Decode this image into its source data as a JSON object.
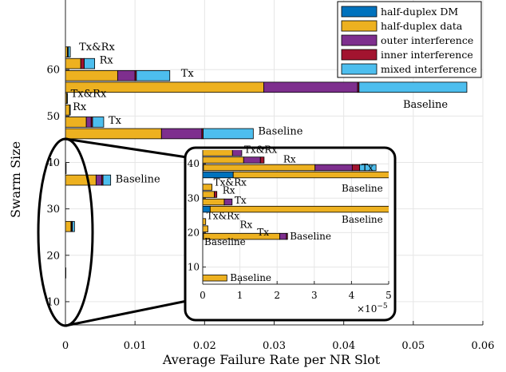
{
  "chart_data": {
    "type": "bar",
    "orientation": "horizontal",
    "stacked": true,
    "xlabel": "Average Failure Rate per NR Slot",
    "ylabel": "Swarm Size",
    "xlim": [
      0,
      0.06
    ],
    "ylim": [
      5,
      75
    ],
    "x_ticks": [
      "0",
      "0.01",
      "0.02",
      "0.03",
      "0.04",
      "0.05",
      "0.06"
    ],
    "y_ticks": [
      "10",
      "20",
      "30",
      "40",
      "50",
      "60"
    ],
    "grid": true,
    "legend_position": "top-right",
    "series": [
      {
        "name": "half-duplex DM",
        "color": "#0072BD"
      },
      {
        "name": "half-duplex data",
        "color": "#EDB120"
      },
      {
        "name": "outer interference",
        "color": "#7E2F8E"
      },
      {
        "name": "inner interference",
        "color": "#A2142F"
      },
      {
        "name": "mixed interference",
        "color": "#4DBEEE"
      }
    ],
    "groups": [
      {
        "swarm_size": 60,
        "bars": [
          {
            "label": "Tx&Rx",
            "values": [
              0,
              0.0003,
              0,
              0.0001,
              0.0003
            ]
          },
          {
            "label": "Rx",
            "values": [
              0,
              0.0022,
              0,
              0.0005,
              0.0015
            ]
          },
          {
            "label": "Tx",
            "values": [
              0,
              0.0075,
              0.0025,
              0.0002,
              0.0048
            ]
          },
          {
            "label": "Baseline",
            "values": [
              0,
              0.0285,
              0.0135,
              0.0002,
              0.0155
            ]
          }
        ]
      },
      {
        "swarm_size": 50,
        "bars": [
          {
            "label": "Tx&Rx",
            "values": [
              0,
              0.0002,
              0,
              0,
              0.0001
            ]
          },
          {
            "label": "Rx",
            "values": [
              0,
              0.0006,
              0,
              0,
              0.0001
            ]
          },
          {
            "label": "Tx",
            "values": [
              0,
              0.003,
              0.0007,
              0.0002,
              0.0016
            ]
          },
          {
            "label": "Baseline",
            "values": [
              0,
              0.0138,
              0.0058,
              0.0002,
              0.0072
            ]
          }
        ]
      },
      {
        "swarm_size": 40,
        "bars": [
          {
            "label": "Tx&Rx",
            "values": [
              0,
              0,
              0,
              0,
              0
            ]
          },
          {
            "label": "Rx",
            "values": [
              0,
              0,
              0,
              0,
              0
            ]
          },
          {
            "label": "Tx",
            "values": [
              0,
              3e-05,
              0,
              0,
              1e-05
            ]
          },
          {
            "label": "Baseline",
            "values": [
              0,
              0.0044,
              0.0008,
              0.0002,
              0.0011
            ]
          }
        ]
      },
      {
        "swarm_size": 30,
        "bars": [
          {
            "label": "Tx&Rx",
            "values": [
              0,
              0,
              0,
              0,
              0
            ]
          },
          {
            "label": "Rx",
            "values": [
              0,
              0,
              0,
              0,
              0
            ]
          },
          {
            "label": "Tx",
            "values": [
              0,
              0,
              0,
              0,
              0
            ]
          },
          {
            "label": "Baseline",
            "values": [
              0,
              0.0008,
              0.0001,
              0.0001,
              0.0003
            ]
          }
        ]
      },
      {
        "swarm_size": 20,
        "bars": [
          {
            "label": "Tx&Rx",
            "values": [
              0,
              0,
              0,
              0,
              0
            ]
          },
          {
            "label": "Rx",
            "values": [
              0,
              0,
              0,
              0,
              0
            ]
          },
          {
            "label": "Tx",
            "values": [
              0,
              0,
              0,
              0,
              0
            ]
          },
          {
            "label": "Baseline",
            "values": [
              0,
              2e-05,
              0,
              0,
              0
            ]
          }
        ]
      },
      {
        "swarm_size": 10,
        "bars": [
          {
            "label": "Tx&Rx",
            "values": [
              0,
              0,
              0,
              0,
              0
            ]
          },
          {
            "label": "Rx",
            "values": [
              0,
              0,
              0,
              0,
              0
            ]
          },
          {
            "label": "Tx",
            "values": [
              0,
              0,
              0,
              0,
              0
            ]
          },
          {
            "label": "Baseline",
            "values": [
              0,
              0,
              0,
              0,
              0
            ]
          }
        ]
      }
    ],
    "inset": {
      "xlim": [
        0,
        5e-05
      ],
      "ylim": [
        5,
        44
      ],
      "x_ticks": [
        "0",
        "1",
        "2",
        "3",
        "4",
        "5"
      ],
      "y_ticks": [
        "10",
        "20",
        "30",
        "40"
      ],
      "x_multiplier": "×10",
      "x_exponent": "−5",
      "groups": [
        {
          "swarm_size": 40,
          "bars": [
            {
              "label": "Tx&Rx",
              "values": [
                0,
                8e-06,
                2.5e-06,
                0,
                0
              ]
            },
            {
              "label": "Rx",
              "values": [
                0,
                1.1e-05,
                4.5e-06,
                1e-06,
                0
              ]
            },
            {
              "label": "Tx",
              "values": [
                2e-07,
                3e-05,
                1e-05,
                2e-06,
                4.4e-06
              ]
            },
            {
              "label": "Baseline",
              "values": [
                8.2e-06,
                5.5e-05,
                0,
                0,
                0
              ]
            }
          ]
        },
        {
          "swarm_size": 30,
          "bars": [
            {
              "label": "Tx&Rx",
              "values": [
                0,
                2.5e-06,
                0,
                0,
                0
              ]
            },
            {
              "label": "Rx",
              "values": [
                0,
                3.1e-06,
                0,
                7e-07,
                0
              ]
            },
            {
              "label": "Tx",
              "values": [
                0,
                5.8e-06,
                2.1e-06,
                0,
                0
              ]
            },
            {
              "label": "Baseline",
              "values": [
                2e-06,
                6.5e-05,
                0,
                0,
                0
              ]
            }
          ]
        },
        {
          "swarm_size": 20,
          "bars": [
            {
              "label": "Tx&Rx",
              "values": [
                0,
                8e-07,
                0,
                0,
                0
              ]
            },
            {
              "label": "Rx",
              "values": [
                0,
                1.4e-06,
                0,
                0,
                0
              ]
            },
            {
              "label": "Tx",
              "values": [
                2e-07,
                2.05e-05,
                1.8e-06,
                3e-07,
                0
              ]
            },
            {
              "label": "Baseline",
              "values": [
                0,
                0,
                0,
                0,
                0
              ]
            }
          ]
        },
        {
          "swarm_size": 10,
          "bars": [
            {
              "label": "Tx&Rx",
              "values": [
                0,
                0,
                0,
                0,
                0
              ]
            },
            {
              "label": "Rx",
              "values": [
                0,
                0,
                0,
                0,
                0
              ]
            },
            {
              "label": "Tx",
              "values": [
                0,
                0,
                0,
                0,
                0
              ]
            },
            {
              "label": "Baseline",
              "values": [
                0,
                6.5e-06,
                0,
                0,
                0
              ]
            }
          ]
        }
      ]
    }
  }
}
